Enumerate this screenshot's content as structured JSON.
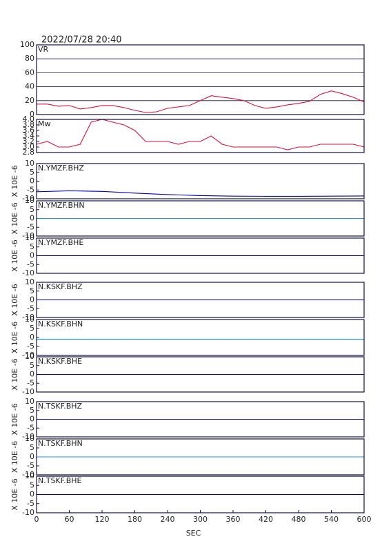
{
  "chart_data": [
    {
      "type": "line",
      "title": "2022/07/28 20:40",
      "label": "VR",
      "color": "#d2143c",
      "x": [
        0,
        20,
        40,
        60,
        80,
        100,
        120,
        140,
        160,
        180,
        200,
        220,
        240,
        260,
        280,
        300,
        320,
        340,
        360,
        380,
        400,
        420,
        440,
        460,
        480,
        500,
        520,
        540,
        560,
        580,
        600
      ],
      "values": [
        15,
        15,
        12,
        13,
        8,
        10,
        13,
        13,
        10,
        6,
        3,
        4,
        9,
        11,
        13,
        20,
        27,
        25,
        23,
        20,
        13,
        9,
        11,
        14,
        16,
        19,
        29,
        34,
        30,
        25,
        18
      ],
      "xlim": [
        0,
        600
      ],
      "ylim": [
        0,
        100
      ],
      "yticks": [
        0,
        20,
        40,
        60,
        80,
        100
      ],
      "grid": true
    },
    {
      "type": "line",
      "label": "Mw",
      "color": "#d2143c",
      "x": [
        0,
        20,
        40,
        60,
        80,
        100,
        120,
        140,
        160,
        180,
        200,
        220,
        240,
        260,
        280,
        300,
        320,
        340,
        360,
        380,
        400,
        420,
        440,
        460,
        480,
        500,
        520,
        540,
        560,
        580,
        600
      ],
      "values": [
        3.1,
        3.2,
        3.0,
        3.0,
        3.1,
        3.9,
        4.0,
        3.9,
        3.8,
        3.6,
        3.2,
        3.2,
        3.2,
        3.1,
        3.2,
        3.2,
        3.4,
        3.1,
        3.0,
        3.0,
        3.0,
        3.0,
        3.0,
        2.9,
        3.0,
        3.0,
        3.1,
        3.1,
        3.1,
        3.1,
        3.0
      ],
      "xlim": [
        0,
        600
      ],
      "ylim": [
        2.8,
        4.0
      ],
      "yticks": [
        2.8,
        {
          "value": 3,
          "label": "3.0"
        },
        3.2,
        3.4,
        3.6,
        3.8,
        {
          "value": 4,
          "label": "4.0"
        }
      ],
      "grid": false
    },
    {
      "type": "line",
      "label": "N.YMZF.BHZ",
      "y_label": "X 10E -6",
      "color": "#0000b4",
      "x": [
        0,
        60,
        120,
        180,
        240,
        300,
        360,
        420,
        480,
        540,
        600
      ],
      "values": [
        -6,
        -5.5,
        -5.8,
        -6.8,
        -7.6,
        -8.2,
        -8.5,
        -8.6,
        -8.6,
        -8.5,
        -8.4
      ],
      "xlim": [
        0,
        600
      ],
      "ylim": [
        -10,
        10
      ],
      "yticks": [
        -10,
        -5,
        0,
        5,
        10
      ]
    },
    {
      "type": "line",
      "label": "N.YMZF.BHN",
      "y_label": "X 10E -6",
      "color": "#1e8cf0",
      "x": [
        0,
        60,
        120,
        180,
        240,
        300,
        360,
        420,
        480,
        540,
        600
      ],
      "values": [
        0,
        0,
        0,
        0,
        0,
        0,
        0,
        0,
        0,
        0,
        0
      ],
      "xlim": [
        0,
        600
      ],
      "ylim": [
        -10,
        10
      ],
      "yticks": [
        -10,
        -5,
        0,
        5,
        10
      ]
    },
    {
      "type": "line",
      "label": "N.YMZF.BHE",
      "y_label": "X 10E -6",
      "color": "#000080",
      "x": [
        0,
        60,
        120,
        180,
        240,
        300,
        360,
        420,
        480,
        540,
        600
      ],
      "values": [
        0,
        0,
        0,
        0,
        0,
        0,
        0,
        0,
        0,
        0,
        0
      ],
      "xlim": [
        0,
        600
      ],
      "ylim": [
        -10,
        10
      ],
      "yticks": [
        -10,
        -5,
        0,
        5,
        10
      ]
    },
    {
      "type": "line",
      "label": "N.KSKF.BHZ",
      "y_label": "X 10E -6",
      "color": "#0000b4",
      "x": [
        0,
        60,
        120,
        180,
        240,
        300,
        360,
        420,
        480,
        540,
        600
      ],
      "values": [
        0,
        0,
        0,
        0,
        0,
        0,
        0,
        0,
        0,
        0,
        0
      ],
      "xlim": [
        0,
        600
      ],
      "ylim": [
        -10,
        10
      ],
      "yticks": [
        -10,
        -5,
        0,
        5,
        10
      ]
    },
    {
      "type": "line",
      "label": "N.KSKF.BHN",
      "y_label": "X 10E -6",
      "color": "#1e8cf0",
      "x": [
        0,
        60,
        120,
        180,
        240,
        300,
        360,
        420,
        480,
        540,
        600
      ],
      "values": [
        -1,
        -1,
        -1,
        -1,
        -1,
        -1,
        -1,
        -1,
        -1,
        -1,
        -1
      ],
      "xlim": [
        0,
        600
      ],
      "ylim": [
        -10,
        10
      ],
      "yticks": [
        -10,
        -5,
        0,
        5,
        10
      ]
    },
    {
      "type": "line",
      "label": "N.KSKF.BHE",
      "y_label": "X 10E -6",
      "color": "#000080",
      "x": [
        0,
        60,
        120,
        180,
        240,
        300,
        360,
        420,
        480,
        540,
        600
      ],
      "values": [
        0,
        0,
        0,
        0,
        0,
        0,
        0,
        0,
        0,
        0,
        0
      ],
      "xlim": [
        0,
        600
      ],
      "ylim": [
        -10,
        10
      ],
      "yticks": [
        -10,
        -5,
        0,
        5,
        10
      ]
    },
    {
      "type": "line",
      "label": "N.TSKF.BHZ",
      "y_label": "X 10E -6",
      "color": "#0000b4",
      "x": [
        0,
        60,
        120,
        180,
        240,
        300,
        360,
        420,
        480,
        540,
        600
      ],
      "values": [
        0,
        0,
        0,
        0,
        0,
        0,
        0,
        0,
        0,
        0,
        0
      ],
      "xlim": [
        0,
        600
      ],
      "ylim": [
        -10,
        10
      ],
      "yticks": [
        -10,
        -5,
        0,
        5,
        10
      ]
    },
    {
      "type": "line",
      "label": "N.TSKF.BHN",
      "y_label": "X 10E -6",
      "color": "#1e8cf0",
      "x": [
        0,
        60,
        120,
        180,
        240,
        300,
        360,
        420,
        480,
        540,
        600
      ],
      "values": [
        0,
        0,
        0,
        0,
        0,
        0,
        0,
        0,
        0,
        0,
        0
      ],
      "xlim": [
        0,
        600
      ],
      "ylim": [
        -10,
        10
      ],
      "yticks": [
        -10,
        -5,
        0,
        5,
        10
      ]
    },
    {
      "type": "line",
      "label": "N.TSKF.BHE",
      "y_label": "X 10E -6",
      "color": "#000080",
      "x": [
        0,
        60,
        120,
        180,
        240,
        300,
        360,
        420,
        480,
        540,
        600
      ],
      "values": [
        0,
        0,
        0,
        0,
        0,
        0,
        0,
        0,
        0,
        0,
        0
      ],
      "xlim": [
        0,
        600
      ],
      "ylim": [
        -10,
        10
      ],
      "yticks": [
        -10,
        -5,
        0,
        5,
        10
      ],
      "xticks": [
        0,
        60,
        120,
        180,
        240,
        300,
        360,
        420,
        480,
        540,
        600
      ],
      "x_label": "SEC"
    }
  ]
}
